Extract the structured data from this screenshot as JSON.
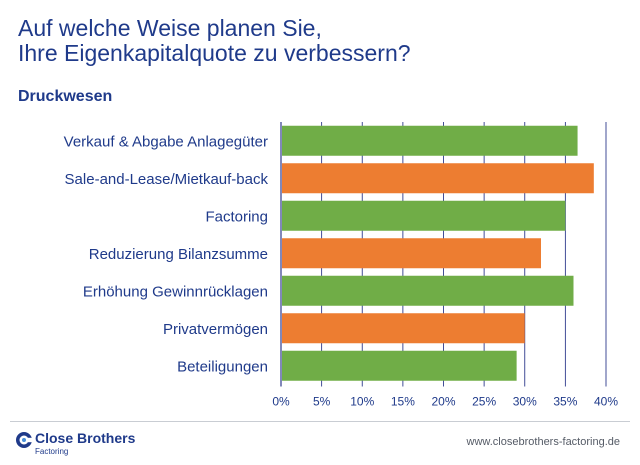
{
  "header": {
    "title_line1": "Auf welche Weise planen Sie,",
    "title_line2": "Ihre Eigenkapitalquote zu verbessern?",
    "subtitle": "Druckwesen"
  },
  "chart_data": {
    "type": "bar",
    "orientation": "horizontal",
    "categories": [
      "Verkauf & Abgabe Anlagegüter",
      "Sale-and-Lease/Mietkauf-back",
      "Factoring",
      "Reduzierung Bilanzsumme",
      "Erhöhung Gewinnrücklagen",
      "Privatvermögen",
      "Beteiligungen"
    ],
    "values": [
      36.5,
      38.5,
      35,
      32,
      36,
      30,
      29
    ],
    "bar_colors": [
      "#70ad47",
      "#ed7d31",
      "#70ad47",
      "#ed7d31",
      "#70ad47",
      "#ed7d31",
      "#70ad47"
    ],
    "x_ticks": [
      "0%",
      "5%",
      "10%",
      "15%",
      "20%",
      "25%",
      "30%",
      "35%",
      "40%"
    ],
    "xlim": [
      0,
      40
    ],
    "grid": "vertical",
    "label_color": "#1f3a8a",
    "grid_color": "#2e3a8c"
  },
  "footer": {
    "logo_name": "Close Brothers",
    "logo_sub": "Factoring",
    "logo_icon": "close-brothers-logo-icon",
    "url": "www.closebrothers-factoring.de"
  }
}
